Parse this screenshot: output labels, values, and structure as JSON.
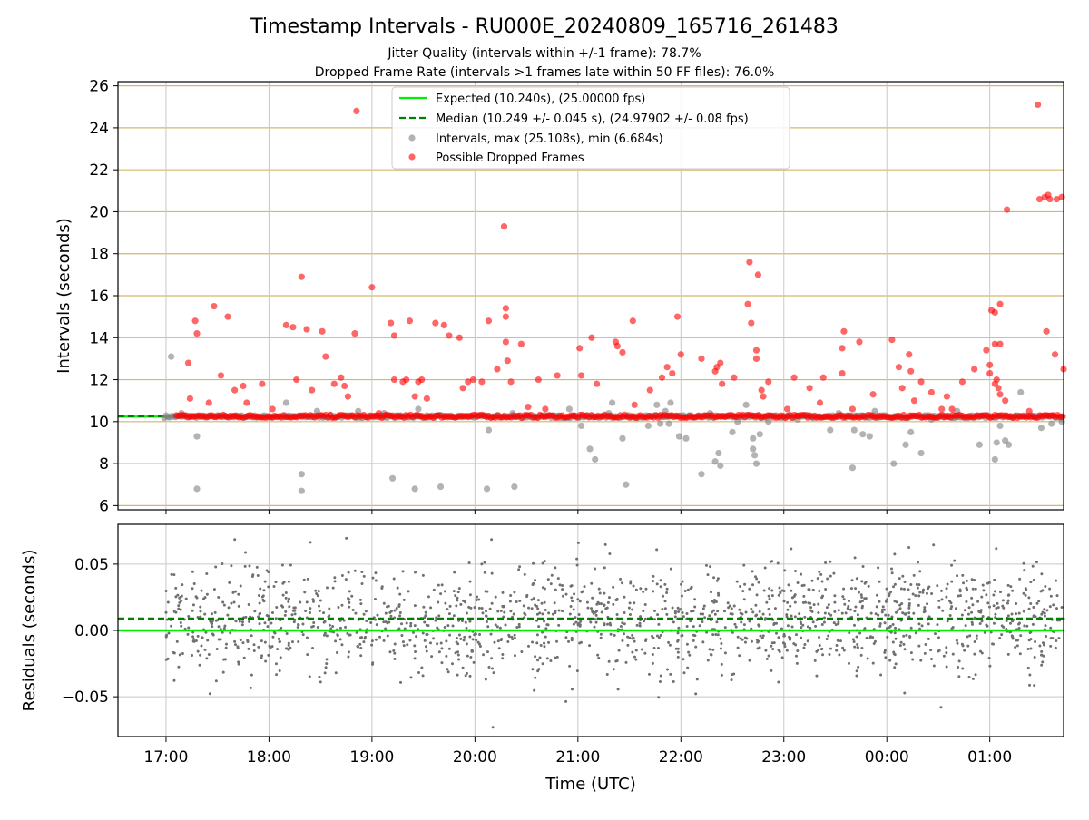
{
  "figure": {
    "title": "Timestamp Intervals - RU000E_20240809_165716_261483",
    "subtitle_1": "Jitter Quality (intervals within +/-1 frame): 78.7%",
    "subtitle_2": "Dropped Frame Rate (intervals >1 frames late within 50 FF files): 76.0%"
  },
  "colors": {
    "expected": "#00ee00",
    "median": "#008000",
    "intervals": "#808080",
    "dropped": "#ff0000",
    "grid_top": "#d2b86a",
    "grid_bottom": "#c8c8c8"
  },
  "chart_data": [
    {
      "type": "scatter",
      "ylabel": "Intervals (seconds)",
      "xlim": [
        "16:32",
        "01:43"
      ],
      "ylim": [
        5.8,
        26.2
      ],
      "yticks": [
        6,
        8,
        10,
        12,
        14,
        16,
        18,
        20,
        22,
        24,
        26
      ],
      "grid": true,
      "legend_placement": "upper center",
      "legend": [
        "Expected (10.240s), (25.00000 fps)",
        "Median (10.249 +/- 0.045 s), (24.97902 +/- 0.08 fps)",
        "Intervals, max (25.108s), min (6.684s)",
        "Possible Dropped Frames"
      ],
      "reference_lines": {
        "expected": 10.24,
        "median": 10.249
      },
      "baseline": {
        "x_start": "16:59",
        "x_end": "01:43",
        "value": 10.24
      },
      "series": [
        {
          "name": "Possible Dropped Frames",
          "points": [
            [
              "17:13",
              12.8
            ],
            [
              "17:14",
              11.1
            ],
            [
              "17:17",
              14.8
            ],
            [
              "17:18",
              14.2
            ],
            [
              "17:25",
              10.9
            ],
            [
              "17:28",
              15.5
            ],
            [
              "17:32",
              12.2
            ],
            [
              "17:36",
              15.0
            ],
            [
              "17:40",
              11.5
            ],
            [
              "17:45",
              11.7
            ],
            [
              "17:47",
              10.9
            ],
            [
              "17:56",
              11.8
            ],
            [
              "18:02",
              10.6
            ],
            [
              "18:10",
              14.6
            ],
            [
              "18:14",
              14.5
            ],
            [
              "18:16",
              12.0
            ],
            [
              "18:19",
              16.9
            ],
            [
              "18:22",
              14.4
            ],
            [
              "18:25",
              11.5
            ],
            [
              "18:31",
              14.3
            ],
            [
              "18:33",
              13.1
            ],
            [
              "18:38",
              11.8
            ],
            [
              "18:42",
              12.1
            ],
            [
              "18:44",
              11.7
            ],
            [
              "18:46",
              11.2
            ],
            [
              "18:50",
              14.2
            ],
            [
              "18:51",
              24.8
            ],
            [
              "19:00",
              16.4
            ],
            [
              "19:04",
              10.4
            ],
            [
              "19:11",
              14.7
            ],
            [
              "19:13",
              14.1
            ],
            [
              "19:13",
              12.0
            ],
            [
              "19:18",
              11.9
            ],
            [
              "19:20",
              12.0
            ],
            [
              "19:22",
              14.8
            ],
            [
              "19:25",
              11.2
            ],
            [
              "19:27",
              11.9
            ],
            [
              "19:29",
              12.0
            ],
            [
              "19:32",
              11.1
            ],
            [
              "19:37",
              14.7
            ],
            [
              "19:42",
              14.6
            ],
            [
              "19:45",
              14.1
            ],
            [
              "19:51",
              14.0
            ],
            [
              "19:53",
              11.6
            ],
            [
              "19:56",
              11.9
            ],
            [
              "19:59",
              12.0
            ],
            [
              "20:04",
              11.9
            ],
            [
              "20:08",
              14.8
            ],
            [
              "20:13",
              12.5
            ],
            [
              "20:17",
              19.3
            ],
            [
              "20:18",
              15.4
            ],
            [
              "20:18",
              15.0
            ],
            [
              "20:18",
              13.8
            ],
            [
              "20:19",
              12.9
            ],
            [
              "20:21",
              11.9
            ],
            [
              "20:27",
              13.7
            ],
            [
              "20:31",
              10.7
            ],
            [
              "20:37",
              12.0
            ],
            [
              "20:41",
              10.6
            ],
            [
              "20:48",
              12.2
            ],
            [
              "21:01",
              13.5
            ],
            [
              "21:02",
              12.2
            ],
            [
              "21:08",
              14.0
            ],
            [
              "21:11",
              11.8
            ],
            [
              "21:22",
              13.8
            ],
            [
              "21:23",
              13.6
            ],
            [
              "21:26",
              13.3
            ],
            [
              "21:32",
              14.8
            ],
            [
              "21:33",
              10.8
            ],
            [
              "21:42",
              11.5
            ],
            [
              "21:49",
              12.1
            ],
            [
              "21:52",
              12.6
            ],
            [
              "21:55",
              12.3
            ],
            [
              "21:58",
              15.0
            ],
            [
              "22:00",
              13.2
            ],
            [
              "22:12",
              13.0
            ],
            [
              "22:20",
              12.4
            ],
            [
              "22:21",
              12.6
            ],
            [
              "22:23",
              12.8
            ],
            [
              "22:24",
              11.8
            ],
            [
              "22:31",
              12.1
            ],
            [
              "22:39",
              15.6
            ],
            [
              "22:40",
              17.6
            ],
            [
              "22:41",
              14.7
            ],
            [
              "22:44",
              13.0
            ],
            [
              "22:44",
              13.4
            ],
            [
              "22:45",
              17.0
            ],
            [
              "22:47",
              11.5
            ],
            [
              "22:48",
              11.2
            ],
            [
              "22:51",
              11.9
            ],
            [
              "23:02",
              10.6
            ],
            [
              "23:06",
              12.1
            ],
            [
              "23:15",
              11.6
            ],
            [
              "23:21",
              10.9
            ],
            [
              "23:23",
              12.1
            ],
            [
              "23:34",
              12.3
            ],
            [
              "23:34",
              13.5
            ],
            [
              "23:35",
              14.3
            ],
            [
              "23:40",
              10.6
            ],
            [
              "23:44",
              13.8
            ],
            [
              "23:52",
              11.3
            ],
            [
              "24:03",
              13.9
            ],
            [
              "24:07",
              12.6
            ],
            [
              "24:09",
              11.6
            ],
            [
              "24:13",
              13.2
            ],
            [
              "24:14",
              12.4
            ],
            [
              "24:16",
              11.0
            ],
            [
              "24:20",
              11.9
            ],
            [
              "24:26",
              11.4
            ],
            [
              "24:32",
              10.6
            ],
            [
              "24:35",
              11.2
            ],
            [
              "24:38",
              10.6
            ],
            [
              "24:44",
              11.9
            ],
            [
              "24:51",
              12.5
            ],
            [
              "24:58",
              13.4
            ],
            [
              "25:00",
              12.7
            ],
            [
              "25:00",
              12.3
            ],
            [
              "25:01",
              15.3
            ],
            [
              "25:03",
              15.2
            ],
            [
              "25:03",
              13.7
            ],
            [
              "25:03",
              11.8
            ],
            [
              "25:04",
              12.0
            ],
            [
              "25:05",
              11.6
            ],
            [
              "25:06",
              13.7
            ],
            [
              "25:06",
              15.6
            ],
            [
              "25:06",
              11.3
            ],
            [
              "25:09",
              11.0
            ],
            [
              "25:10",
              20.1
            ],
            [
              "25:23",
              10.5
            ],
            [
              "25:28",
              25.1
            ],
            [
              "25:29",
              20.6
            ],
            [
              "25:32",
              20.7
            ],
            [
              "25:33",
              14.3
            ],
            [
              "25:34",
              20.8
            ],
            [
              "25:35",
              20.6
            ],
            [
              "25:38",
              13.2
            ],
            [
              "25:39",
              20.6
            ],
            [
              "25:42",
              20.7
            ],
            [
              "25:43",
              12.5
            ]
          ]
        },
        {
          "name": "Intervals",
          "points": [
            [
              "17:03",
              13.1
            ],
            [
              "17:09",
              10.4
            ],
            [
              "17:18",
              9.3
            ],
            [
              "17:18",
              6.8
            ],
            [
              "18:10",
              10.9
            ],
            [
              "18:19",
              7.5
            ],
            [
              "18:19",
              6.7
            ],
            [
              "18:28",
              10.5
            ],
            [
              "18:52",
              10.5
            ],
            [
              "19:07",
              10.4
            ],
            [
              "19:12",
              7.3
            ],
            [
              "19:27",
              10.6
            ],
            [
              "19:25",
              6.8
            ],
            [
              "19:40",
              6.9
            ],
            [
              "20:08",
              9.6
            ],
            [
              "20:07",
              6.8
            ],
            [
              "20:23",
              6.9
            ],
            [
              "20:22",
              10.4
            ],
            [
              "20:55",
              10.6
            ],
            [
              "21:02",
              9.8
            ],
            [
              "21:07",
              8.7
            ],
            [
              "21:10",
              8.2
            ],
            [
              "21:18",
              10.4
            ],
            [
              "21:26",
              9.2
            ],
            [
              "21:28",
              7.0
            ],
            [
              "21:41",
              9.8
            ],
            [
              "21:46",
              10.8
            ],
            [
              "21:51",
              10.5
            ],
            [
              "21:53",
              9.9
            ],
            [
              "21:59",
              9.3
            ],
            [
              "22:03",
              9.2
            ],
            [
              "22:12",
              7.5
            ],
            [
              "22:17",
              10.4
            ],
            [
              "22:20",
              8.1
            ],
            [
              "22:22",
              8.5
            ],
            [
              "22:23",
              7.9
            ],
            [
              "22:30",
              9.5
            ],
            [
              "22:33",
              10.0
            ],
            [
              "22:38",
              10.8
            ],
            [
              "22:42",
              9.2
            ],
            [
              "22:42",
              8.7
            ],
            [
              "22:43",
              8.4
            ],
            [
              "22:44",
              8.0
            ],
            [
              "22:46",
              9.4
            ],
            [
              "22:51",
              10.0
            ],
            [
              "22:59",
              10.2
            ],
            [
              "23:08",
              10.1
            ],
            [
              "23:14",
              10.3
            ],
            [
              "23:27",
              9.6
            ],
            [
              "23:32",
              10.4
            ],
            [
              "23:41",
              9.6
            ],
            [
              "23:46",
              9.4
            ],
            [
              "23:50",
              9.3
            ],
            [
              "23:53",
              10.5
            ],
            [
              "24:11",
              8.9
            ],
            [
              "24:14",
              9.5
            ],
            [
              "24:20",
              8.5
            ],
            [
              "24:26",
              10.1
            ],
            [
              "24:33",
              10.3
            ],
            [
              "24:41",
              10.5
            ],
            [
              "24:54",
              8.9
            ],
            [
              "25:03",
              8.2
            ],
            [
              "25:04",
              9.0
            ],
            [
              "25:06",
              9.8
            ],
            [
              "25:09",
              9.1
            ],
            [
              "25:11",
              8.9
            ],
            [
              "25:13",
              10.2
            ],
            [
              "25:18",
              11.4
            ],
            [
              "25:30",
              9.7
            ],
            [
              "25:36",
              9.9
            ],
            [
              "25:42",
              10.0
            ],
            [
              "23:40",
              7.8
            ],
            [
              "24:04",
              8.0
            ],
            [
              "21:48",
              9.9
            ],
            [
              "21:54",
              10.9
            ],
            [
              "21:20",
              10.9
            ]
          ]
        }
      ]
    },
    {
      "type": "scatter",
      "xlabel": "Time (UTC)",
      "ylabel": "Residuals (seconds)",
      "xlim": [
        "16:32",
        "01:43"
      ],
      "ylim": [
        -0.08,
        0.08
      ],
      "yticks": [
        -0.05,
        0.0,
        0.05
      ],
      "ytick_labels": [
        "−0.05",
        "0.00",
        "0.05"
      ],
      "xticks": [
        "17:00",
        "18:00",
        "19:00",
        "20:00",
        "21:00",
        "22:00",
        "23:00",
        "00:00",
        "01:00"
      ],
      "grid": true,
      "reference_lines": {
        "expected": 0.0,
        "median": 0.009
      },
      "series": [
        {
          "name": "Residuals",
          "generation": {
            "x_start": "17:00",
            "x_end": "01:43",
            "count": 1700,
            "center": 0.008,
            "spread": 0.02,
            "clip": [
              -0.08,
              0.08
            ]
          }
        }
      ]
    }
  ]
}
